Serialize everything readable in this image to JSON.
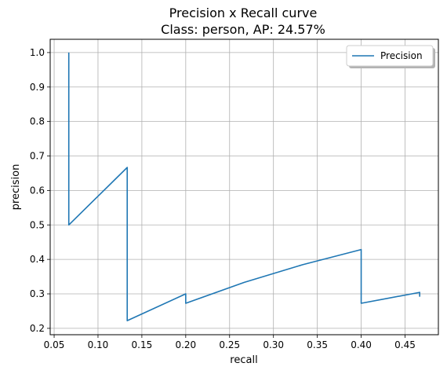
{
  "chart_data": {
    "type": "line",
    "title": "Precision x Recall curve",
    "subtitle": "Class: person, AP: 24.57%",
    "xlabel": "recall",
    "ylabel": "precision",
    "xlim": [
      0.0455,
      0.488
    ],
    "ylim": [
      0.1815,
      1.0385
    ],
    "x_ticks": [
      0.05,
      0.1,
      0.15,
      0.2,
      0.25,
      0.3,
      0.35,
      0.4,
      0.45
    ],
    "x_tick_labels": [
      "0.05",
      "0.10",
      "0.15",
      "0.20",
      "0.25",
      "0.30",
      "0.35",
      "0.40",
      "0.45"
    ],
    "y_ticks": [
      0.2,
      0.3,
      0.4,
      0.5,
      0.6,
      0.7,
      0.8,
      0.9,
      1.0
    ],
    "y_tick_labels": [
      "0.2",
      "0.3",
      "0.4",
      "0.5",
      "0.6",
      "0.7",
      "0.8",
      "0.9",
      "1.0"
    ],
    "grid": true,
    "legend_position": "top-right",
    "series": [
      {
        "name": "Precision",
        "color": "#1f77b4",
        "x": [
          0.0667,
          0.0667,
          0.1333,
          0.1333,
          0.2,
          0.2,
          0.2667,
          0.3333,
          0.4,
          0.4,
          0.4667,
          0.4667
        ],
        "y": [
          1.0,
          0.5,
          0.6667,
          0.2222,
          0.3,
          0.2727,
          0.3333,
          0.3846,
          0.4286,
          0.2727,
          0.3043,
          0.2917
        ]
      }
    ]
  }
}
